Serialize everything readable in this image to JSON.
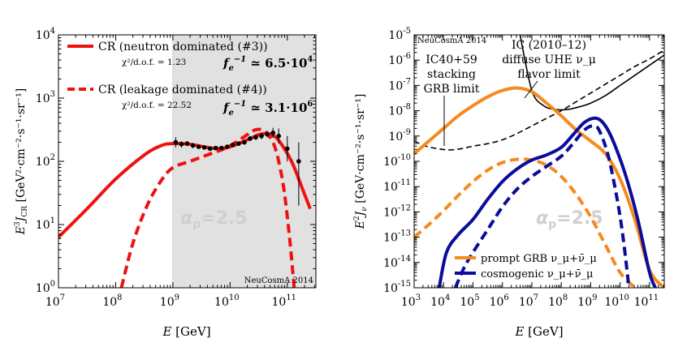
{
  "chart_data": [
    {
      "type": "line",
      "panel": "left",
      "title": "",
      "xlabel": "E [GeV]",
      "ylabel": "E^3 J_CR [GeV^2·cm^-2·s^-1·sr^-1]",
      "xscale": "log",
      "yscale": "log",
      "xlim_exp": [
        7,
        11.5
      ],
      "ylim_exp": [
        0,
        4
      ],
      "x_ticks": [
        "10^7",
        "10^8",
        "10^9",
        "10^10",
        "10^11"
      ],
      "y_ticks": [
        "10^0",
        "10^1",
        "10^2",
        "10^3",
        "10^4"
      ],
      "shaded_region": {
        "from_exp": 9,
        "to_exp": 11.5,
        "color": "#e1e1e1"
      },
      "watermark": "NeuCosmA 2014",
      "overlay_label": "α_p=2.5",
      "legend": [
        {
          "name": "CR (neutron dominated (#3))",
          "style": "solid",
          "color": "#ee1111",
          "chi2": "χ²/d.o.f. = 1.23",
          "fe": "f_e^-1 ≃ 6.5·10^4"
        },
        {
          "name": "CR (leakage dominated (#4))",
          "style": "dashed",
          "color": "#ee1111",
          "chi2": "χ²/d.o.f. = 22.52",
          "fe": "f_e^-1 ≃ 3.1·10^6"
        }
      ],
      "series": [
        {
          "name": "CR (neutron dominated (#3))",
          "style": "solid",
          "color": "#ee1111",
          "log_x": [
            7,
            7.5,
            8,
            8.5,
            8.8,
            9,
            9.3,
            9.6,
            9.8,
            10,
            10.2,
            10.4,
            10.5,
            10.65,
            10.8,
            10.95,
            11.1,
            11.25,
            11.4
          ],
          "log_y": [
            0.8,
            1.25,
            1.72,
            2.1,
            2.25,
            2.28,
            2.27,
            2.22,
            2.2,
            2.23,
            2.3,
            2.38,
            2.42,
            2.44,
            2.38,
            2.2,
            1.95,
            1.6,
            1.25
          ]
        },
        {
          "name": "CR (leakage dominated (#4))",
          "style": "dashed",
          "color": "#ee1111",
          "log_x": [
            8.1,
            8.3,
            8.55,
            8.8,
            9,
            9.3,
            9.6,
            9.9,
            10.1,
            10.3,
            10.45,
            10.6,
            10.75,
            10.85,
            10.95,
            11.05,
            11.12
          ],
          "log_y": [
            0,
            0.7,
            1.3,
            1.7,
            1.9,
            2.0,
            2.1,
            2.2,
            2.3,
            2.42,
            2.5,
            2.48,
            2.3,
            2.0,
            1.5,
            0.7,
            0
          ]
        }
      ],
      "data_points": {
        "log_x": [
          9.05,
          9.15,
          9.25,
          9.35,
          9.45,
          9.55,
          9.65,
          9.75,
          9.85,
          9.95,
          10.05,
          10.15,
          10.25,
          10.35,
          10.45,
          10.55,
          10.65,
          10.75,
          10.85,
          11.0,
          11.2
        ],
        "log_y": [
          2.3,
          2.27,
          2.28,
          2.25,
          2.23,
          2.22,
          2.2,
          2.21,
          2.21,
          2.23,
          2.26,
          2.28,
          2.3,
          2.36,
          2.38,
          2.4,
          2.43,
          2.45,
          2.4,
          2.2,
          2.0
        ],
        "err_up": [
          0.08,
          0.05,
          0.04,
          0.04,
          0.03,
          0.03,
          0.03,
          0.03,
          0.03,
          0.03,
          0.03,
          0.03,
          0.03,
          0.04,
          0.04,
          0.05,
          0.05,
          0.08,
          0.12,
          0.2,
          0.3
        ],
        "err_down": [
          0.08,
          0.05,
          0.04,
          0.04,
          0.03,
          0.03,
          0.03,
          0.03,
          0.03,
          0.03,
          0.03,
          0.03,
          0.03,
          0.04,
          0.04,
          0.05,
          0.05,
          0.08,
          0.12,
          0.2,
          0.7
        ]
      }
    },
    {
      "type": "line",
      "panel": "right",
      "title": "",
      "xlabel": "E [GeV]",
      "ylabel": "E^2 J_ν [GeV·cm^-2·s^-1·sr^-1]",
      "xscale": "log",
      "yscale": "log",
      "xlim_exp": [
        3,
        11.5
      ],
      "ylim_exp": [
        -15,
        -5
      ],
      "x_ticks": [
        "10^3",
        "10^4",
        "10^5",
        "10^6",
        "10^7",
        "10^8",
        "10^9",
        "10^10",
        "10^11"
      ],
      "y_ticks": [
        "10^-15",
        "10^-14",
        "10^-13",
        "10^-12",
        "10^-11",
        "10^-10",
        "10^-9",
        "10^-8",
        "10^-7",
        "10^-6",
        "10^-5"
      ],
      "watermark": "NeuCosmA 2014",
      "overlay_label": "α_p=2.5",
      "annotations": [
        {
          "text": [
            "IC (2010–12)",
            "diffuse UHE ν_μ",
            "flavor limit"
          ]
        },
        {
          "text": [
            "IC40+59",
            "stacking",
            "GRB limit"
          ]
        }
      ],
      "legend": [
        {
          "name": "prompt GRB ν_μ+ν̄_μ",
          "color": "#f58a1f"
        },
        {
          "name": "cosmogenic ν_μ+ν̄_μ",
          "color": "#0b0b9c"
        }
      ],
      "series": [
        {
          "name": "IC diffuse UHE limit",
          "style": "solid",
          "color": "#000000",
          "log_x": [
            6.6,
            7,
            7.4,
            7.8,
            8.2,
            8.6,
            9.0,
            9.5,
            10,
            10.5,
            11,
            11.5
          ],
          "log_y": [
            -5,
            -7.2,
            -7.8,
            -7.95,
            -7.95,
            -7.85,
            -7.7,
            -7.4,
            -7.0,
            -6.6,
            -6.2,
            -5.8
          ]
        },
        {
          "name": "IC40+59 stacking GRB limit",
          "style": "dashed",
          "color": "#000000",
          "log_x": [
            3,
            3.4,
            3.8,
            4.2,
            4.6,
            5,
            5.5,
            6,
            6.5,
            7,
            7.5,
            8,
            8.5,
            9,
            9.5,
            10,
            10.5,
            11,
            11.5
          ],
          "log_y": [
            -9.2,
            -9.4,
            -9.5,
            -9.55,
            -9.5,
            -9.4,
            -9.3,
            -9.15,
            -8.9,
            -8.6,
            -8.3,
            -8.0,
            -7.65,
            -7.3,
            -6.95,
            -6.6,
            -6.25,
            -5.95,
            -5.6
          ]
        },
        {
          "name": "prompt GRB (neutron dominated)",
          "style": "solid",
          "color": "#f58a1f",
          "log_x": [
            3,
            3.5,
            4,
            4.5,
            5,
            5.5,
            6,
            6.5,
            7,
            7.5,
            8,
            8.5,
            9,
            9.5,
            10,
            10.5,
            11,
            11.5
          ],
          "log_y": [
            -9.7,
            -9.2,
            -8.7,
            -8.2,
            -7.8,
            -7.45,
            -7.2,
            -7.1,
            -7.25,
            -7.7,
            -8.2,
            -8.75,
            -9.2,
            -9.7,
            -10.7,
            -12.3,
            -14.3,
            -15
          ]
        },
        {
          "name": "prompt GRB (leakage dominated)",
          "style": "dashed",
          "color": "#f58a1f",
          "log_x": [
            3,
            3.5,
            4,
            4.5,
            5,
            5.5,
            6,
            6.5,
            7,
            7.5,
            8,
            8.5,
            9,
            9.5,
            10,
            10.5
          ],
          "log_y": [
            -13.0,
            -12.5,
            -11.95,
            -11.35,
            -10.8,
            -10.35,
            -10.05,
            -9.92,
            -9.95,
            -10.15,
            -10.6,
            -11.3,
            -12.2,
            -13.3,
            -14.4,
            -15
          ]
        },
        {
          "name": "cosmogenic (neutron dominated)",
          "style": "solid",
          "color": "#0b0b9c",
          "log_x": [
            3.85,
            4.1,
            4.5,
            5,
            5.5,
            6,
            6.5,
            7,
            7.5,
            8,
            8.4,
            8.8,
            9.2,
            9.5,
            9.8,
            10.2,
            10.6,
            11,
            11.2
          ],
          "log_y": [
            -15,
            -13.6,
            -12.9,
            -12.3,
            -11.5,
            -10.8,
            -10.3,
            -9.95,
            -9.75,
            -9.45,
            -8.95,
            -8.45,
            -8.3,
            -8.6,
            -9.3,
            -10.6,
            -12.3,
            -14.4,
            -15
          ]
        },
        {
          "name": "cosmogenic (leakage dominated)",
          "style": "dashed",
          "color": "#0b0b9c",
          "log_x": [
            4.4,
            4.7,
            5,
            5.5,
            6,
            6.5,
            7,
            7.5,
            8,
            8.4,
            8.8,
            9.1,
            9.3,
            9.6,
            9.9,
            10.1,
            10.3
          ],
          "log_y": [
            -15,
            -14.2,
            -13.6,
            -12.7,
            -11.8,
            -11.1,
            -10.6,
            -10.2,
            -9.8,
            -9.3,
            -8.75,
            -8.6,
            -8.8,
            -9.8,
            -11.5,
            -13.0,
            -15
          ]
        }
      ]
    }
  ]
}
